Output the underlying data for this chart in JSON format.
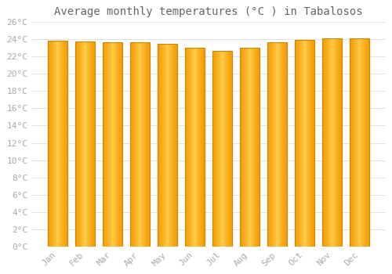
{
  "title": "Average monthly temperatures (°C ) in Tabalosos",
  "months": [
    "Jan",
    "Feb",
    "Mar",
    "Apr",
    "May",
    "Jun",
    "Jul",
    "Aug",
    "Sep",
    "Oct",
    "Nov",
    "Dec"
  ],
  "values": [
    23.8,
    23.7,
    23.6,
    23.6,
    23.4,
    23.0,
    22.6,
    23.0,
    23.6,
    23.9,
    24.1,
    24.1
  ],
  "ylim": [
    0,
    26
  ],
  "yticks": [
    0,
    2,
    4,
    6,
    8,
    10,
    12,
    14,
    16,
    18,
    20,
    22,
    24,
    26
  ],
  "bar_color_center": "#FFD050",
  "bar_color_edge": "#F59A00",
  "bar_border_color": "#CC8800",
  "background_color": "#FFFFFF",
  "grid_color": "#E0E0E0",
  "title_fontsize": 10,
  "tick_fontsize": 8,
  "font_color": "#AAAAAA",
  "title_color": "#666666"
}
